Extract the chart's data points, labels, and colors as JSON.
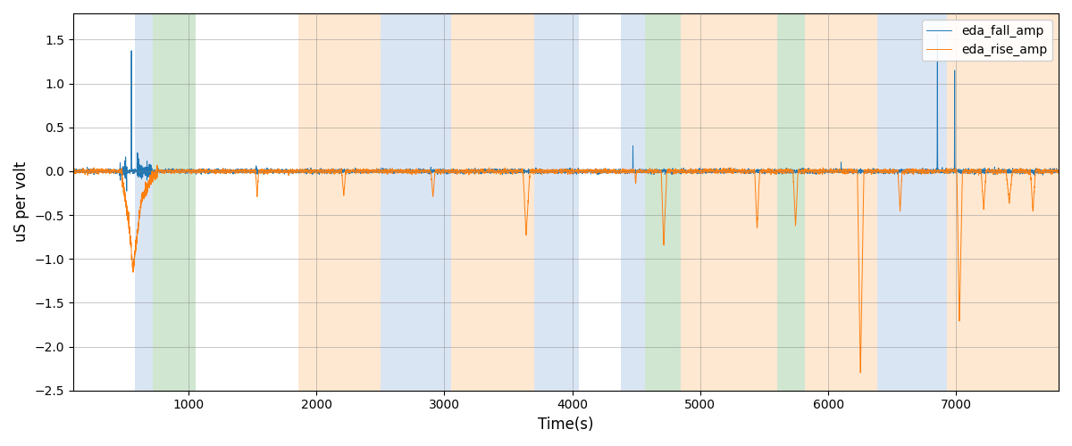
{
  "title": "",
  "xlabel": "Time(s)",
  "ylabel": "uS per volt",
  "xlim": [
    100,
    7800
  ],
  "ylim": [
    -2.5,
    1.8
  ],
  "yticks": [
    -2.5,
    -2.0,
    -1.5,
    -1.0,
    -0.5,
    0.0,
    0.5,
    1.0,
    1.5
  ],
  "xticks": [
    1000,
    2000,
    3000,
    4000,
    5000,
    6000,
    7000
  ],
  "legend_labels": [
    "eda_fall_amp",
    "eda_rise_amp"
  ],
  "line_colors": [
    "#1f77b4",
    "#ff7f0e"
  ],
  "bg_regions": [
    {
      "xstart": 580,
      "xend": 720,
      "color": "#aec6e8",
      "alpha": 0.45
    },
    {
      "xstart": 720,
      "xend": 1060,
      "color": "#98c99a",
      "alpha": 0.45
    },
    {
      "xstart": 1860,
      "xend": 2500,
      "color": "#ffcc99",
      "alpha": 0.45
    },
    {
      "xstart": 2500,
      "xend": 3050,
      "color": "#aec6e8",
      "alpha": 0.45
    },
    {
      "xstart": 3050,
      "xend": 3700,
      "color": "#ffcc99",
      "alpha": 0.45
    },
    {
      "xstart": 3700,
      "xend": 4050,
      "color": "#aec6e8",
      "alpha": 0.45
    },
    {
      "xstart": 4380,
      "xend": 4570,
      "color": "#aec6e8",
      "alpha": 0.45
    },
    {
      "xstart": 4570,
      "xend": 4850,
      "color": "#98c99a",
      "alpha": 0.45
    },
    {
      "xstart": 4850,
      "xend": 5600,
      "color": "#ffcc99",
      "alpha": 0.45
    },
    {
      "xstart": 5600,
      "xend": 5820,
      "color": "#98c99a",
      "alpha": 0.45
    },
    {
      "xstart": 5820,
      "xend": 6380,
      "color": "#ffcc99",
      "alpha": 0.45
    },
    {
      "xstart": 6380,
      "xend": 6930,
      "color": "#aec6e8",
      "alpha": 0.45
    },
    {
      "xstart": 6930,
      "xend": 7800,
      "color": "#ffcc99",
      "alpha": 0.45
    }
  ],
  "seed": 42,
  "n_points": 7800
}
